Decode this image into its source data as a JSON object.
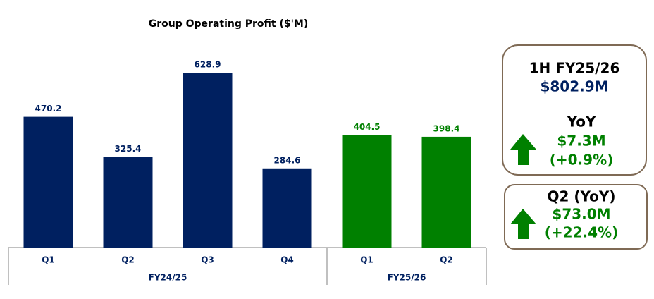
{
  "chart_data": {
    "type": "bar",
    "title": "Group Operating Profit ($'M)",
    "categories": [
      "Q1",
      "Q2",
      "Q3",
      "Q4",
      "Q1",
      "Q2"
    ],
    "series": [
      {
        "name": "FY24/25",
        "color": "#002060",
        "values": [
          470.2,
          325.4,
          628.9,
          284.6,
          null,
          null
        ]
      },
      {
        "name": "FY25/26",
        "color": "#008000",
        "values": [
          null,
          null,
          null,
          null,
          404.5,
          398.4
        ]
      }
    ],
    "ylim": [
      0,
      700
    ]
  },
  "summary": [
    {
      "title": "1H FY25/26",
      "value": "$802.9M",
      "label": "YoY",
      "change": "$7.3M",
      "pct": "(+0.9%)"
    },
    {
      "title": "Q2 (YoY)",
      "change": "$73.0M",
      "pct": "(+22.4%)"
    }
  ]
}
